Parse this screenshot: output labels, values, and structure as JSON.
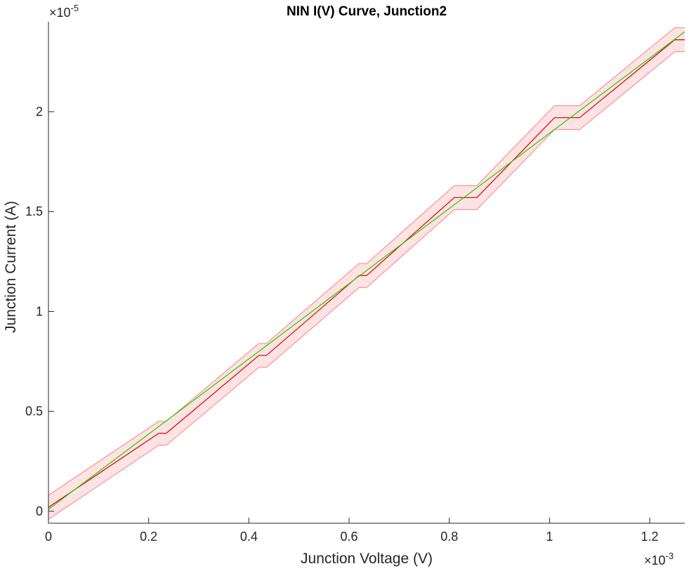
{
  "chart_data": {
    "type": "line",
    "title": "NIN I(V) Curve, Junction2",
    "xlabel": "Junction Voltage (V)",
    "ylabel": "Junction Current (A)",
    "x_exponent_label": {
      "base": "×10",
      "exp": "-3"
    },
    "y_exponent_label": {
      "base": "×10",
      "exp": "-5"
    },
    "xlim": [
      0,
      0.00127
    ],
    "ylim": [
      -6e-07,
      2.45e-05
    ],
    "x_ticks": [
      0,
      0.0002,
      0.0004,
      0.0006,
      0.0008,
      0.001,
      0.0012
    ],
    "x_tick_labels": [
      "0",
      "0.2",
      "0.4",
      "0.6",
      "0.8",
      "1",
      "1.2"
    ],
    "y_ticks": [
      0,
      5e-06,
      1e-05,
      1.5e-05,
      2e-05
    ],
    "y_tick_labels": [
      "0",
      "0.5",
      "1",
      "1.5",
      "2"
    ],
    "grid": false,
    "series": [
      {
        "color": "#dd0000",
        "x": [
          0,
          0.00022,
          0.000235,
          0.00042,
          0.000435,
          0.00062,
          0.000635,
          0.00081,
          0.000855,
          0.00101,
          0.00106,
          0.00125,
          0.00127
        ],
        "y": [
          2e-07,
          3.9e-06,
          3.9e-06,
          7.8e-06,
          7.8e-06,
          1.18e-05,
          1.18e-05,
          1.57e-05,
          1.57e-05,
          1.97e-05,
          1.97e-05,
          2.36e-05,
          2.36e-05
        ]
      },
      {
        "color": "#22cc00",
        "x": [
          0,
          0.00127
        ],
        "y": [
          1e-07,
          2.4e-05
        ]
      }
    ],
    "band": {
      "color": "#ff8080",
      "fill": "#fde3e3",
      "upper_offset": 6e-07,
      "lower_offset": -6e-07
    }
  }
}
